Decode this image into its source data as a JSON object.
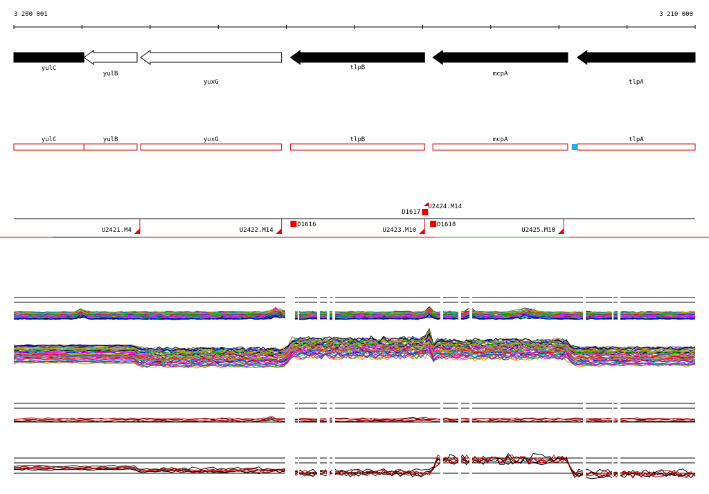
{
  "ruler": {
    "start_label": "3 200 001",
    "end_label": "3 210 000",
    "start": 3200001,
    "end": 3210000
  },
  "genes": [
    {
      "name": "yulC",
      "start": 3200001,
      "end": 3201030,
      "strand": "+",
      "style": "filled"
    },
    {
      "name": "yulB",
      "start": 3201030,
      "end": 3201810,
      "strand": "-",
      "style": "open"
    },
    {
      "name": "yuxG",
      "start": 3201860,
      "end": 3203930,
      "strand": "-",
      "style": "open"
    },
    {
      "name": "tlpB",
      "start": 3204060,
      "end": 3206030,
      "strand": "-",
      "style": "filled"
    },
    {
      "name": "mcpA",
      "start": 3206150,
      "end": 3208130,
      "strand": "-",
      "style": "filled"
    },
    {
      "name": "tlpA",
      "start": 3208270,
      "end": 3210000,
      "strand": "-",
      "style": "filled"
    }
  ],
  "gene_boxes": [
    {
      "name": "yulC",
      "start": 3200001,
      "end": 3201030
    },
    {
      "name": "yulB",
      "start": 3201030,
      "end": 3201810
    },
    {
      "name": "yuxG",
      "start": 3201860,
      "end": 3203930
    },
    {
      "name": "tlpB",
      "start": 3204060,
      "end": 3206030
    },
    {
      "name": "mcpA",
      "start": 3206150,
      "end": 3208130
    },
    {
      "name": "tlpA",
      "start": 3208270,
      "end": 3210000,
      "marker": "#2aa7e6"
    }
  ],
  "features": [
    {
      "label": "U2421.M4",
      "pos": 3201850,
      "side": "left"
    },
    {
      "label": "U2422.M14",
      "pos": 3203930,
      "side": "left"
    },
    {
      "label": "D1616",
      "pos": 3204080,
      "side": "right"
    },
    {
      "label": "U2423.M10",
      "pos": 3206030,
      "side": "left"
    },
    {
      "label": "D1617",
      "pos": 3206030,
      "side": "left-upper"
    },
    {
      "label": "U2424.M14",
      "pos": 3206070,
      "side": "right-upper"
    },
    {
      "label": "D1618",
      "pos": 3206130,
      "side": "right"
    },
    {
      "label": "U2425.M10",
      "pos": 3208070,
      "side": "left"
    }
  ],
  "colors": {
    "gene_fill": "#000000",
    "gene_box": "#cc0000",
    "feature": "#ee0000",
    "trace_red": "#cc0000",
    "trace_green": "#22aa22"
  },
  "track_series_palette": [
    "#000000",
    "#ff00ff",
    "#00aa00",
    "#0000ff",
    "#ff8800",
    "#00cccc",
    "#aaaa00",
    "#8800ff",
    "#ff0000",
    "#008888",
    "#88cc00",
    "#cc44aa"
  ]
}
